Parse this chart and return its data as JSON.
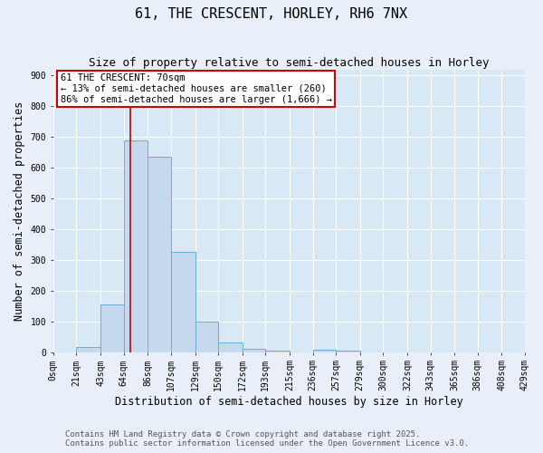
{
  "title": "61, THE CRESCENT, HORLEY, RH6 7NX",
  "subtitle": "Size of property relative to semi-detached houses in Horley",
  "xlabel": "Distribution of semi-detached houses by size in Horley",
  "ylabel": "Number of semi-detached properties",
  "bin_edges": [
    0,
    21,
    43,
    64,
    86,
    107,
    129,
    150,
    172,
    193,
    215,
    236,
    257,
    279,
    300,
    322,
    343,
    365,
    386,
    408,
    429
  ],
  "bar_heights": [
    0,
    15,
    155,
    690,
    635,
    325,
    100,
    30,
    10,
    5,
    0,
    8,
    5,
    0,
    0,
    0,
    0,
    0,
    0,
    0
  ],
  "bar_color": "#c5d8ee",
  "bar_edge_color": "#6aaed6",
  "vline_color": "#cc0000",
  "vline_x": 70,
  "annotation_text": "61 THE CRESCENT: 70sqm\n← 13% of semi-detached houses are smaller (260)\n86% of semi-detached houses are larger (1,666) →",
  "annotation_box_color": "#cc0000",
  "ylim": [
    0,
    920
  ],
  "tick_labels": [
    "0sqm",
    "21sqm",
    "43sqm",
    "64sqm",
    "86sqm",
    "107sqm",
    "129sqm",
    "150sqm",
    "172sqm",
    "193sqm",
    "215sqm",
    "236sqm",
    "257sqm",
    "279sqm",
    "300sqm",
    "322sqm",
    "343sqm",
    "365sqm",
    "386sqm",
    "408sqm",
    "429sqm"
  ],
  "yticks": [
    0,
    100,
    200,
    300,
    400,
    500,
    600,
    700,
    800,
    900
  ],
  "background_color": "#e8eff8",
  "plot_background_color": "#d8e8f4",
  "footer_line1": "Contains HM Land Registry data © Crown copyright and database right 2025.",
  "footer_line2": "Contains public sector information licensed under the Open Government Licence v3.0.",
  "title_fontsize": 11,
  "subtitle_fontsize": 9,
  "axis_label_fontsize": 8.5,
  "tick_fontsize": 7,
  "annotation_fontsize": 7.5,
  "footer_fontsize": 6.5
}
